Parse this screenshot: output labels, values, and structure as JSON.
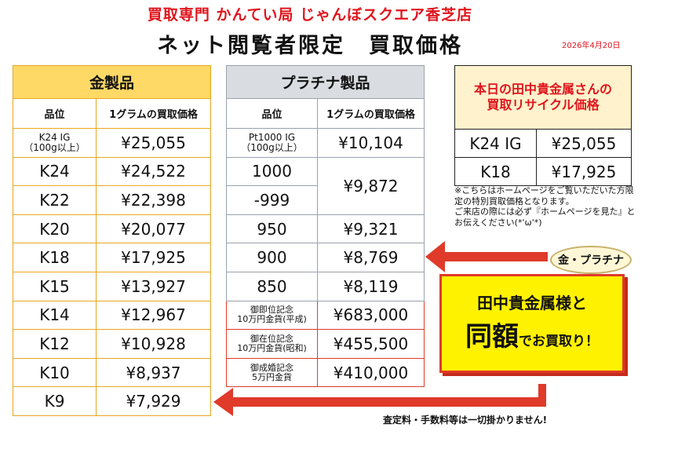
{
  "header": {
    "store_name": "買取専門 かんてい局 じゃんぼスクエア香芝店",
    "headline": "ネット閲覧者限定　買取価格",
    "date": "2026年4月20日"
  },
  "gold_table": {
    "title": "金製品",
    "col_grade": "品位",
    "col_price": "1グラムの買取価格",
    "rows": [
      {
        "grade": "K24 IG\n（100g以上）",
        "price": "¥25,055"
      },
      {
        "grade": "K24",
        "price": "¥24,522"
      },
      {
        "grade": "K22",
        "price": "¥22,398"
      },
      {
        "grade": "K20",
        "price": "¥20,077"
      },
      {
        "grade": "K18",
        "price": "¥17,925"
      },
      {
        "grade": "K15",
        "price": "¥13,927"
      },
      {
        "grade": "K14",
        "price": "¥12,967"
      },
      {
        "grade": "K12",
        "price": "¥10,928"
      },
      {
        "grade": "K10",
        "price": "¥8,937"
      },
      {
        "grade": "K9",
        "price": "¥7,929"
      }
    ]
  },
  "platinum_table": {
    "title": "プラチナ製品",
    "col_grade": "品位",
    "col_price": "1グラムの買取価格",
    "rows": [
      {
        "grade": "Pt1000 IG\n（100g以上）",
        "price": "¥10,104"
      },
      {
        "grade_a": "1000",
        "grade_b": "-999",
        "price": "¥9,872"
      },
      {
        "grade": "950",
        "price": "¥9,321"
      },
      {
        "grade": "900",
        "price": "¥8,769"
      },
      {
        "grade": "850",
        "price": "¥8,119"
      }
    ],
    "coins": [
      {
        "name": "御即位記念\n10万円金貨(平成)",
        "price": "¥683,000"
      },
      {
        "name": "御在位記念\n10万円金貨(昭和)",
        "price": "¥455,500"
      },
      {
        "name": "御成婚記念\n5万円金貨",
        "price": "¥410,000"
      }
    ]
  },
  "today_box": {
    "title": "本日の田中貴金属さんの\n買取リサイクル価格",
    "rows": [
      {
        "grade": "K24 IG",
        "price": "¥25,055"
      },
      {
        "grade": "K18",
        "price": "¥17,925"
      }
    ]
  },
  "note": "※こちらはホームページをご覧いただいた方限定の特別買取価格となります。\nご来店の際には必ず『ホームページを見た』とお伝えください(*'ω'*)",
  "badge": "金・プラチナ",
  "callout": {
    "line1": "田中貴金属様と",
    "big": "同額",
    "small": "でお買取り！"
  },
  "footer": "査定料・手数料等は一切掛かりません!",
  "colors": {
    "accent_red": "#e0141c",
    "gold_header": "#ffd966",
    "platinum_header": "#d9dde2",
    "callout_yellow": "#fff200",
    "arrow_red": "#e03a2a"
  }
}
